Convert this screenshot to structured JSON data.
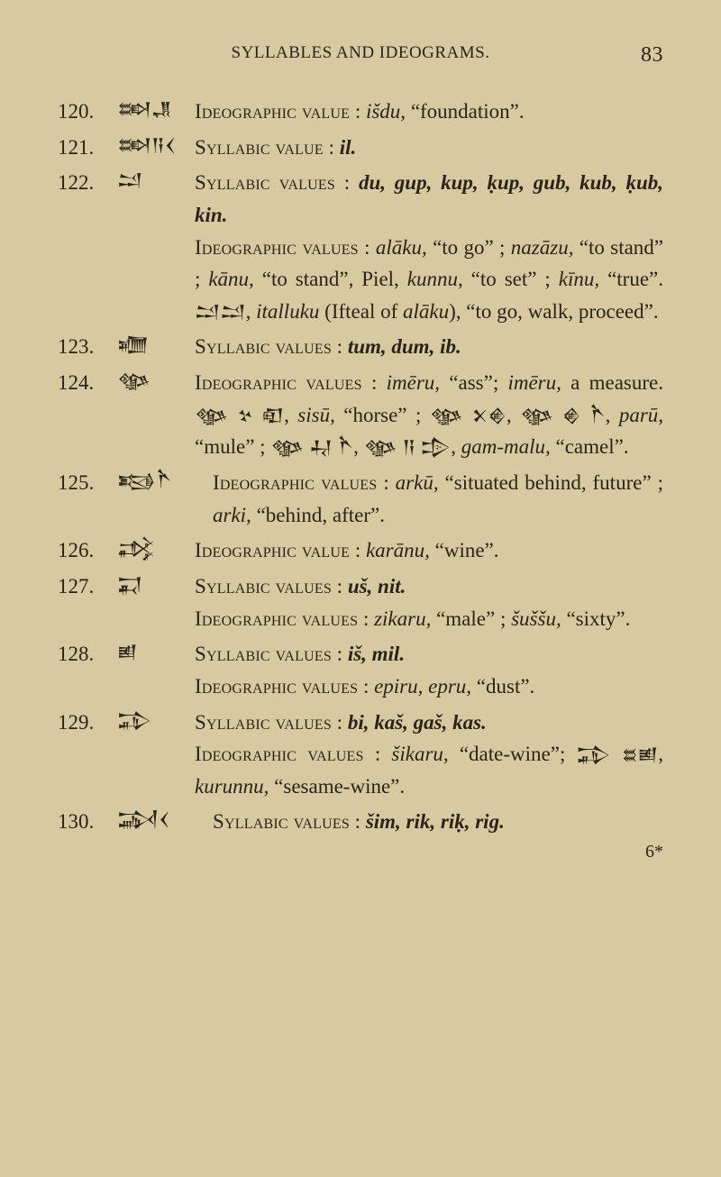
{
  "header": {
    "title": "SYLLABLES AND IDEOGRAMS.",
    "page_number": "83"
  },
  "colors": {
    "background": "#d8c9a0",
    "text": "#2a2318"
  },
  "footer": "6*",
  "entries": [
    {
      "n": "120.",
      "sign": "𒇷𒂗",
      "html": "<span class='sc'>Ideographic value</span> : <i>išdu,</i> “foundation”."
    },
    {
      "n": "121.",
      "sign": "𒇷𒀀𒌋",
      "html": "<span class='sc'>Syllabic value</span> : <b>il.</b>"
    },
    {
      "n": "122.",
      "sign": "𒁺",
      "html": "<span class='sc'>Syllabic values</span> : <b>du, gup, kup, ḳup, gub, kub, ḳub, kin.</b><br><span class='sc'>Ideographic values</span> : <i>alāku,</i> “to go” ; <i>nazāzu,</i> “to stand” ; <i>kānu,</i> “to stand”, Piel, <i>kunnu,</i> “to set” ; <i>kīnu,</i> “true”. <span class='cune'>𒁺𒁺</span>, <i>italluku</i> (Ifteal of <i>alāku</i>), “to go, walk, proceed”."
    },
    {
      "n": "123.",
      "sign": "𒁾",
      "html": "<span class='sc'>Syllabic values</span> : <b>tum, dum, ib.</b>"
    },
    {
      "n": "124.",
      "sign": "𒀲",
      "html": "<span class='sc'>Ideographic values</span> : <i>imēru,</i> “ass”; <i>imēru,</i> a measure. <span class='cune'>𒀲 𒆳 𒊏</span>, <i>sisū,</i> “horse” ; <span class='cune'>𒀲 𒉽𒄯</span>, <span class='cune'>𒀲 𒄯 𒋻</span>, <i>parū,</i> “mule” ; <span class='cune'>𒀲 𒄷 𒋻</span>, <span class='cune'>𒀲 𒀀 𒄠</span>, <i>gam-malu,</i> “camel”."
    },
    {
      "n": "125.",
      "sign": "𒂕𒋻",
      "wide": true,
      "html": "<span class='sc'>Ideographic values</span> : <i>arkū,</i> “situated behind, future” ; <i>arki,</i> “behind, after”."
    },
    {
      "n": "126.",
      "sign": "𒃶",
      "html": "<span class='sc'>Ideographic value</span> : <i>karānu,</i> “wine”."
    },
    {
      "n": "127.",
      "sign": "𒍑",
      "html": "<span class='sc'>Syllabic values</span> : <b>uš, nit.</b><br><span class='sc'>Ideographic values</span> : <i>zikaru,</i> “male” ; <i>šuššu,</i> “sixty”."
    },
    {
      "n": "128.",
      "sign": "𒅖",
      "html": "<span class='sc'>Syllabic values</span> : <b>iš, mil.</b><br><span class='sc'>Ideographic values</span> : <i>epiru, epru,</i> “dust”."
    },
    {
      "n": "129.",
      "sign": "𒁉",
      "html": "<span class='sc'>Syllabic values</span> : <b>bi, kaš, gaš, kas.</b><br><span class='sc'>Ideographic values</span> : <i>šikaru</i>, “date-wine”; <span class='cune'>𒁉 𒊺𒅖</span>, <i>kurunnu,</i> “sesame-wine”."
    },
    {
      "n": "130.",
      "sign": "𒋆𒌋",
      "wide": true,
      "html": "<span class='sc'>Syllabic values</span> : <b>šim, rik, riḳ, rig.</b>"
    }
  ]
}
